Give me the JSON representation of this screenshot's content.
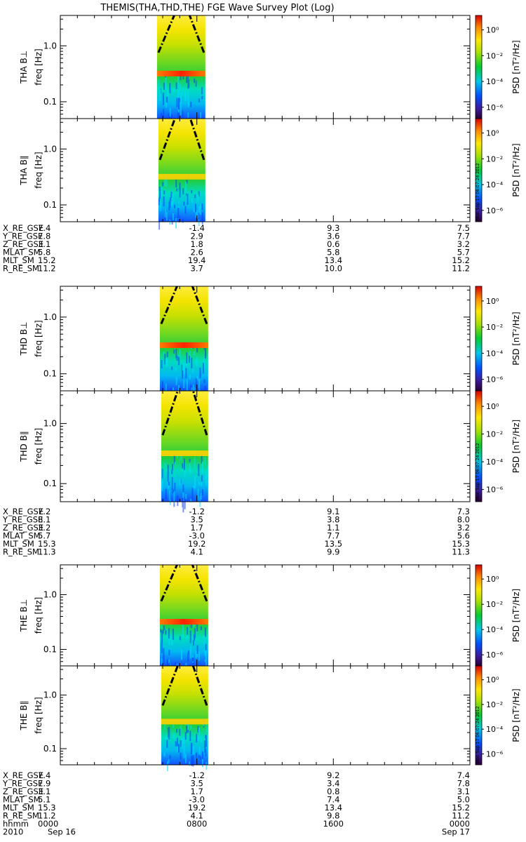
{
  "title": "THEMIS(THA,THD,THE) FGE Wave Survey Plot (Log)",
  "colorbar": {
    "label": "PSD [nT²/Hz]",
    "ticks": [
      "10⁰",
      "10⁻²",
      "10⁻⁴",
      "10⁻⁶"
    ],
    "stamp": "Mon Sep 17 06:07:24 2012"
  },
  "chart_data": {
    "type": "heatmap",
    "x_axis": {
      "label": "hhmm",
      "ticks": [
        "0000",
        "0800",
        "1600",
        "0000"
      ],
      "date_labels": [
        "2010",
        "Sep 16",
        "Sep 17"
      ]
    },
    "y_axis": {
      "label": "freq [Hz]",
      "scale": "log",
      "range_hz": [
        0.05,
        3.5
      ],
      "ticks": [
        "1.0",
        "0.1"
      ]
    },
    "data_window_hhmm": [
      "0540",
      "0830"
    ],
    "bright_band_hz": 0.32,
    "panels": [
      {
        "probe": "THA",
        "component": "THA B⊥"
      },
      {
        "probe": "THA",
        "component": "THA B∥"
      },
      {
        "probe": "THD",
        "component": "THD B⊥"
      },
      {
        "probe": "THD",
        "component": "THD B∥"
      },
      {
        "probe": "THE",
        "component": "THE B⊥"
      },
      {
        "probe": "THE",
        "component": "THE B∥"
      }
    ],
    "ephemeris": [
      {
        "probe": "THA",
        "rows": [
          {
            "label": "X_RE_GSE",
            "values": [
              "7.4",
              "-1.4",
              "9.3",
              "7.5"
            ]
          },
          {
            "label": "Y_RE_GSE",
            "values": [
              "7.8",
              "2.9",
              "3.6",
              "7.7"
            ]
          },
          {
            "label": "Z_RE_GSE",
            "values": [
              "3.1",
              "1.8",
              "0.6",
              "3.2"
            ]
          },
          {
            "label": "MLAT_SM",
            "values": [
              "5.8",
              "2.6",
              "5.8",
              "5.7"
            ]
          },
          {
            "label": "MLT_SM",
            "values": [
              "15.2",
              "19.4",
              "13.4",
              "15.2"
            ]
          },
          {
            "label": "R_RE_SM",
            "values": [
              "11.2",
              "3.7",
              "10.0",
              "11.2"
            ]
          }
        ]
      },
      {
        "probe": "THD",
        "rows": [
          {
            "label": "X_RE_GSE",
            "values": [
              "7.2",
              "-1.2",
              "9.1",
              "7.3"
            ]
          },
          {
            "label": "Y_RE_GSE",
            "values": [
              "8.1",
              "3.5",
              "3.8",
              "8.0"
            ]
          },
          {
            "label": "Z_RE_GSE",
            "values": [
              "3.2",
              "1.7",
              "1.1",
              "3.2"
            ]
          },
          {
            "label": "MLAT_SM",
            "values": [
              "5.7",
              "-3.0",
              "7.7",
              "5.6"
            ]
          },
          {
            "label": "MLT_SM",
            "values": [
              "15.3",
              "19.2",
              "13.5",
              "15.3"
            ]
          },
          {
            "label": "R_RE_SM",
            "values": [
              "11.3",
              "4.1",
              "9.9",
              "11.3"
            ]
          }
        ]
      },
      {
        "probe": "THE",
        "rows": [
          {
            "label": "X_RE_GSE",
            "values": [
              "7.4",
              "-1.2",
              "9.2",
              "7.4"
            ]
          },
          {
            "label": "Y_RE_GSE",
            "values": [
              "7.9",
              "3.5",
              "3.4",
              "7.8"
            ]
          },
          {
            "label": "Z_RE_GSE",
            "values": [
              "3.1",
              "1.7",
              "0.8",
              "3.1"
            ]
          },
          {
            "label": "MLAT_SM",
            "values": [
              "5.1",
              "-3.0",
              "7.4",
              "5.0"
            ]
          },
          {
            "label": "MLT_SM",
            "values": [
              "15.3",
              "19.2",
              "13.4",
              "15.2"
            ]
          },
          {
            "label": "R_RE_SM",
            "values": [
              "11.2",
              "4.1",
              "9.8",
              "11.2"
            ]
          }
        ]
      }
    ]
  }
}
